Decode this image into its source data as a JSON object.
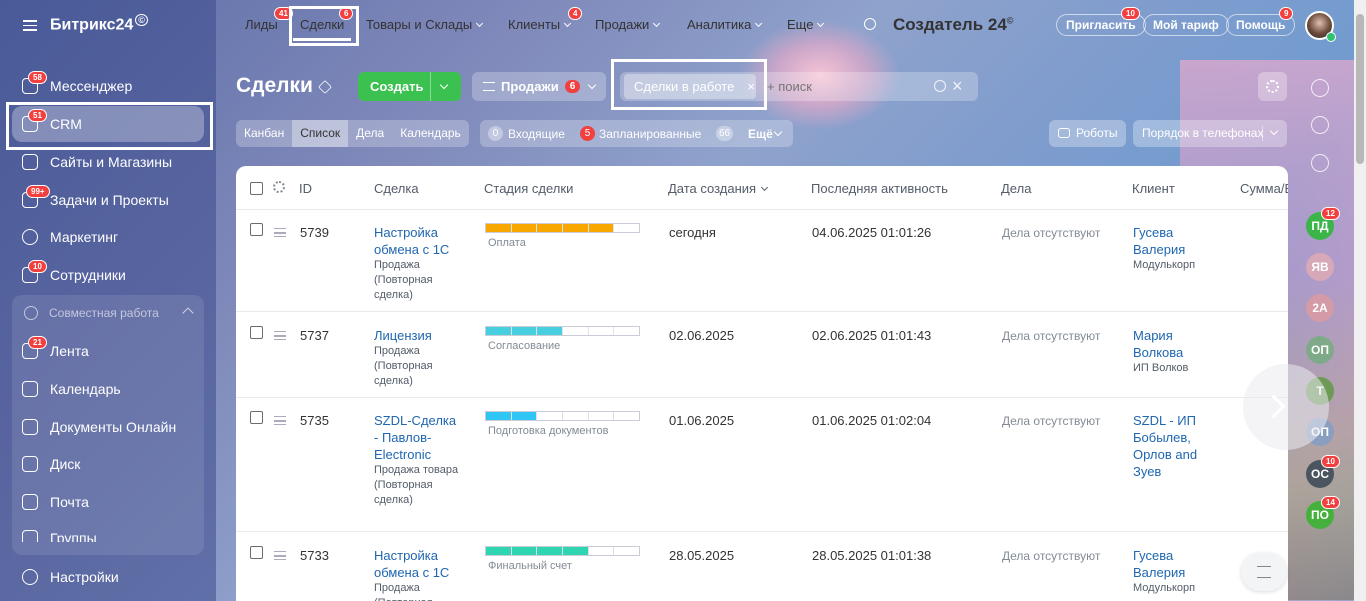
{
  "brand": {
    "name": "Битрикс24",
    "mark": "©"
  },
  "sidebar": {
    "items": [
      {
        "label": "Мессенджер",
        "badge": "58"
      },
      {
        "label": "CRM",
        "badge": "51"
      },
      {
        "label": "Сайты и Магазины",
        "badge": ""
      },
      {
        "label": "Задачи и Проекты",
        "badge": "99+"
      },
      {
        "label": "Маркетинг",
        "badge": ""
      },
      {
        "label": "Сотрудники",
        "badge": "10"
      }
    ],
    "group_title": "Совместная работа",
    "group_items": [
      {
        "label": "Лента",
        "badge": "21"
      },
      {
        "label": "Календарь",
        "badge": ""
      },
      {
        "label": "Документы Онлайн",
        "badge": ""
      },
      {
        "label": "Диск",
        "badge": ""
      },
      {
        "label": "Почта",
        "badge": ""
      },
      {
        "label": "Группы",
        "badge": ""
      }
    ],
    "settings": "Настройки"
  },
  "topnav": {
    "leads": "Лиды",
    "leads_badge": "41",
    "deals": "Сделки",
    "deals_badge": "6",
    "goods": "Товары и Склады",
    "clients": "Клиенты",
    "clients_badge": "4",
    "sales": "Продажи",
    "analytics": "Аналитика",
    "more": "Еще",
    "portal": "Создатель 24",
    "invite": "Пригласить",
    "invite_badge": "10",
    "tariff": "Мой тариф",
    "help": "Помощь",
    "help_badge": "9"
  },
  "toolbar": {
    "title": "Сделки",
    "create": "Создать",
    "category": "Продажи",
    "category_badge": "6",
    "filter_chip": "Сделки в работе",
    "search_placeholder": "+ поиск",
    "robots": "Роботы",
    "order": "Порядок в телефонах"
  },
  "views": [
    "Канбан",
    "Список",
    "Дела",
    "Календарь"
  ],
  "counters": {
    "incoming_count": "0",
    "incoming": "Входящие",
    "planned_count": "5",
    "planned": "Запланированные",
    "more_count": "66",
    "more": "Ещё"
  },
  "table": {
    "headers": [
      "ID",
      "Сделка",
      "Стадия сделки",
      "Дата создания",
      "Последняя активность",
      "Дела",
      "Клиент",
      "Сумма/В"
    ],
    "rows": [
      {
        "id": "5739",
        "title": "Настройка обмена с 1С",
        "type": "Продажа (Повторная сделка)",
        "stage": "Оплата",
        "stage_fill": 0.83,
        "stage_color": "#f7a700",
        "created": "сегодня",
        "activity": "04.06.2025 01:01:26",
        "tasks": "Дела отсутствуют",
        "client": "Гусева Валерия",
        "company": "Модулькорп"
      },
      {
        "id": "5737",
        "title": "Лицензия",
        "type": "Продажа (Повторная сделка)",
        "stage": "Согласование",
        "stage_fill": 0.5,
        "stage_color": "#47cfe0",
        "created": "02.06.2025",
        "activity": "02.06.2025 01:01:43",
        "tasks": "Дела отсутствуют",
        "client": "Мария Волкова",
        "company": "ИП Волков"
      },
      {
        "id": "5735",
        "title": "SZDL-Сделка - Павлов-Electronic",
        "type": "Продажа товара (Повторная сделка)",
        "stage": "Подготовка документов",
        "stage_fill": 0.33,
        "stage_color": "#2fc6f6",
        "created": "01.06.2025",
        "activity": "01.06.2025 01:02:04",
        "tasks": "Дела отсутствуют",
        "client": "SZDL - ИП Бобылев, Орлов and Зуев",
        "company": ""
      },
      {
        "id": "5733",
        "title": "Настройка обмена с 1С",
        "type": "Продажа (Повторная сделка)",
        "stage": "Финальный счет",
        "stage_fill": 0.66,
        "stage_color": "#2fd5b0",
        "created": "28.05.2025",
        "activity": "28.05.2025 01:01:38",
        "tasks": "Дела отсутствуют",
        "client": "Гусева Валерия",
        "company": "Модулькорп"
      }
    ]
  },
  "right_panel": {
    "contacts": [
      {
        "initials": "ПД",
        "color": "#3bb54a",
        "badge": "12"
      },
      {
        "initials": "ЯВ",
        "color": "#d7a9b8",
        "badge": ""
      },
      {
        "initials": "2А",
        "color": "#d49aa5",
        "badge": ""
      },
      {
        "initials": "ОП",
        "color": "#7faa8a",
        "badge": ""
      },
      {
        "initials": "Т",
        "color": "#6e9a58",
        "badge": ""
      },
      {
        "initials": "ОП",
        "color": "#8a9fc0",
        "badge": ""
      },
      {
        "initials": "ОС",
        "color": "#4a5560",
        "badge": "10"
      },
      {
        "initials": "ПО",
        "color": "#46b03c",
        "badge": "14"
      }
    ]
  }
}
